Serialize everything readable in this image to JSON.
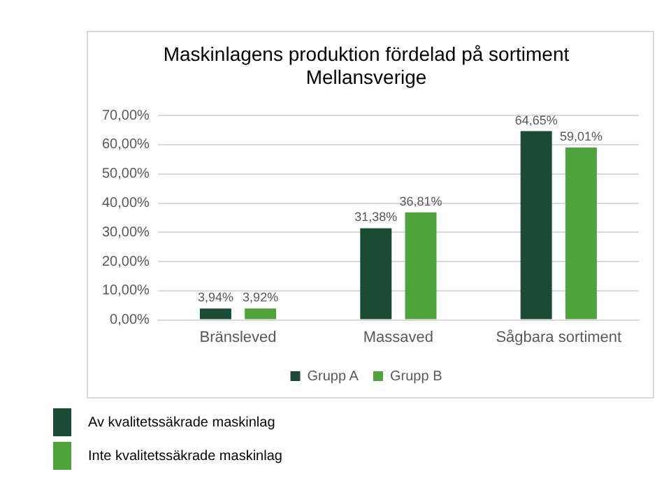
{
  "chart_data": {
    "type": "bar",
    "title": [
      "Maskinlagens produktion fördelad på sortiment",
      "Mellansverige"
    ],
    "categories": [
      "Bränsleved",
      "Massaved",
      "Sågbara sortiment"
    ],
    "series": [
      {
        "name": "Grupp A",
        "color": "#1b4b35",
        "values": [
          3.94,
          31.38,
          64.65
        ],
        "value_labels": [
          "3,94%",
          "31,38%",
          "64,65%"
        ]
      },
      {
        "name": "Grupp B",
        "color": "#4fa33b",
        "values": [
          3.92,
          36.81,
          59.01
        ],
        "value_labels": [
          "3,92%",
          "36,81%",
          "59,01%"
        ]
      }
    ],
    "ylim": [
      0,
      70
    ],
    "yticks": [
      {
        "value": 0,
        "label": "0,00%"
      },
      {
        "value": 10,
        "label": "10,00%"
      },
      {
        "value": 20,
        "label": "20,00%"
      },
      {
        "value": 30,
        "label": "30,00%"
      },
      {
        "value": 40,
        "label": "40,00%"
      },
      {
        "value": 50,
        "label": "50,00%"
      },
      {
        "value": 60,
        "label": "60,00%"
      },
      {
        "value": 70,
        "label": "70,00%"
      }
    ],
    "grid": "y",
    "legend": "bottom",
    "annotations": [
      "Av kvalitetssäkrade maskinlag",
      "Inte kvalitetssäkrade maskinlag"
    ]
  }
}
